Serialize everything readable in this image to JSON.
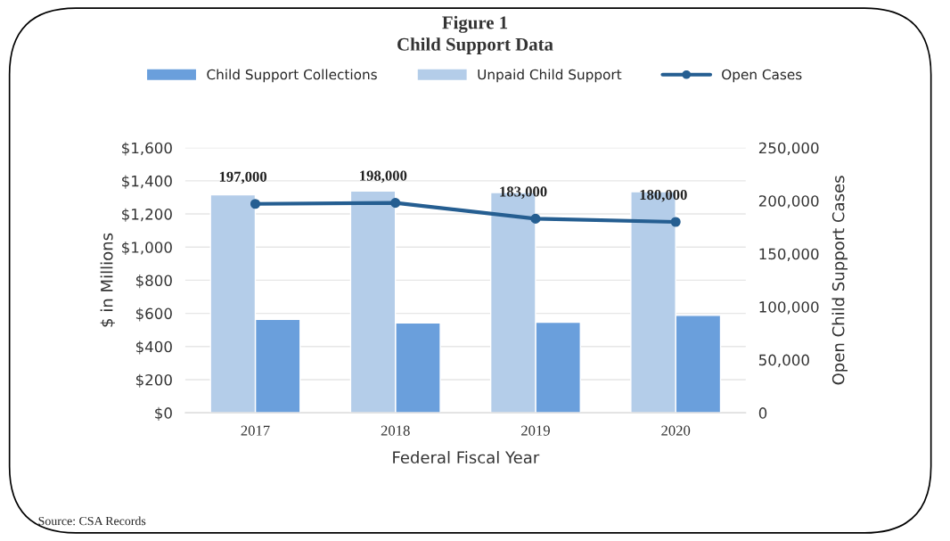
{
  "chart_data": {
    "type": "bar",
    "title": "Figure 1",
    "subtitle": "Child Support Data",
    "categories": [
      "2017",
      "2018",
      "2019",
      "2020"
    ],
    "xlabel": "Federal Fiscal Year",
    "ylabel": "$ in Millions",
    "y2label": "Open Child Support Cases",
    "series": [
      {
        "name": "Child Support Collections",
        "color": "#6a9fdc",
        "values": [
          564,
          543,
          546,
          588
        ]
      },
      {
        "name": "Unpaid Child Support",
        "color": "#b4cde9",
        "values": [
          1316,
          1338,
          1329,
          1334
        ]
      },
      {
        "name": "Open Cases",
        "type": "line",
        "axis": "y2",
        "color": "#255e91",
        "marker": "circle",
        "values": [
          197000,
          198000,
          183000,
          180000
        ],
        "value_labels": [
          "197,000",
          "198,000",
          "183,000",
          "180,000"
        ]
      }
    ],
    "ylim": [
      0,
      1600
    ],
    "yticks": [
      {
        "value": 0,
        "label": "$0"
      },
      {
        "value": 200,
        "label": "$200"
      },
      {
        "value": 400,
        "label": "$400"
      },
      {
        "value": 600,
        "label": "$600"
      },
      {
        "value": 800,
        "label": "$800"
      },
      {
        "value": 1000,
        "label": "$1,000"
      },
      {
        "value": 1200,
        "label": "$1,200"
      },
      {
        "value": 1400,
        "label": "$1,400"
      },
      {
        "value": 1600,
        "label": "$1,600"
      }
    ],
    "y2lim": [
      0,
      250000
    ],
    "y2ticks": [
      0,
      {
        "value": 50000,
        "label": "50,000"
      },
      {
        "value": 100000,
        "label": "100,000"
      },
      {
        "value": 150000,
        "label": "150,000"
      },
      {
        "value": 200000,
        "label": "200,000"
      },
      {
        "value": 250000,
        "label": "250,000"
      }
    ],
    "grid": "y",
    "legend": "top",
    "annotations": [
      "Source: CSA Records"
    ]
  }
}
